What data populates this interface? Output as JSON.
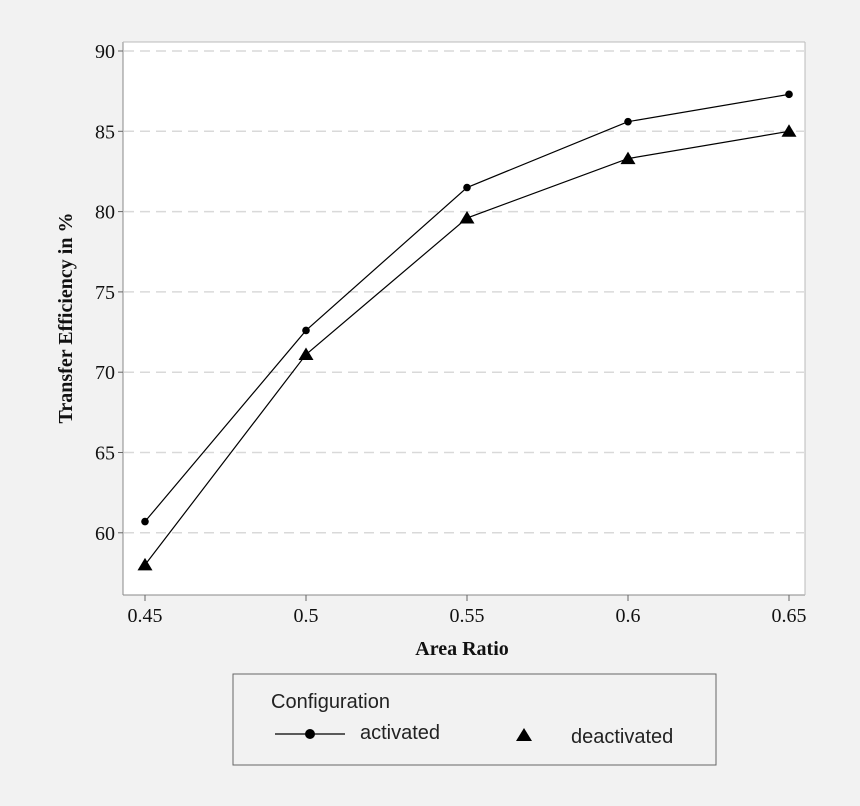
{
  "chart_data": {
    "type": "line",
    "title": "",
    "xlabel": "Area Ratio",
    "ylabel": "Transfer Efficiency in %",
    "x": [
      0.45,
      0.5,
      0.55,
      0.6,
      0.65
    ],
    "x_tick_labels": [
      "0.45",
      "0.5",
      "0.55",
      "0.6",
      "0.65"
    ],
    "xlim": [
      0.45,
      0.65
    ],
    "ylim": [
      56.5,
      90
    ],
    "y_ticks": [
      60,
      65,
      70,
      75,
      80,
      85,
      90
    ],
    "y_tick_labels": [
      "60",
      "65",
      "70",
      "75",
      "80",
      "85",
      "90"
    ],
    "grid": "horizontal dashed",
    "legend_placement": "bottom",
    "series": [
      {
        "name": "activated",
        "marker": "circle",
        "values": [
          60.7,
          72.6,
          81.5,
          85.6,
          87.3
        ]
      },
      {
        "name": "deactivated",
        "marker": "triangle",
        "values": [
          58.0,
          71.1,
          79.6,
          83.3,
          85.0
        ]
      }
    ],
    "legend": {
      "title": "Configuration"
    },
    "colors": {
      "line": "#000000",
      "grid": "#d9d9d9",
      "plot_bg": "#ffffff",
      "page_bg": "#f2f2f2"
    }
  }
}
